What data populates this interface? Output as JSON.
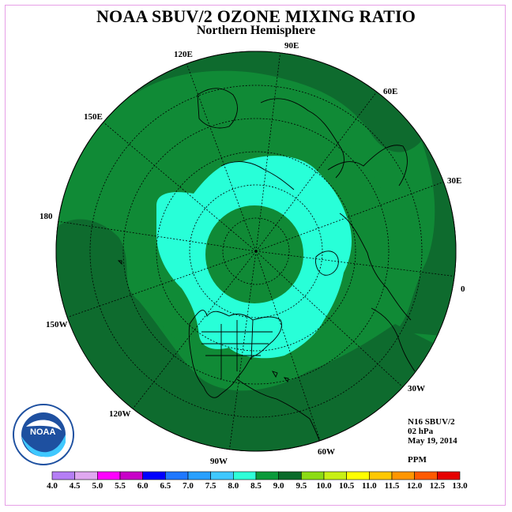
{
  "title": "NOAA SBUV/2 OZONE MIXING RATIO",
  "subtitle": "Northern Hemisphere",
  "longitude_labels": [
    "120E",
    "90E",
    "60E",
    "30E",
    "0",
    "30W",
    "60W",
    "90W",
    "120W",
    "150W",
    "180",
    "150E"
  ],
  "info": {
    "satellite": "N16 SBUV/2",
    "pressure": "02 hPa",
    "date": "May 19, 2014",
    "units": "PPM"
  },
  "logo": {
    "text": "NOAA",
    "ring_text": "NATIONAL OCEANIC AND ATMOSPHERIC ADMINISTRATION · U.S. DEPARTMENT OF COMMERCE"
  },
  "colorbar": {
    "labels": [
      "4.0",
      "4.5",
      "5.0",
      "5.5",
      "6.0",
      "6.5",
      "7.0",
      "7.5",
      "8.0",
      "8.5",
      "9.0",
      "9.5",
      "10.0",
      "10.5",
      "11.0",
      "11.5",
      "12.0",
      "12.5",
      "13.0"
    ],
    "colors": [
      "#b57ef5",
      "#e0a8f0",
      "#ff00ff",
      "#c800c8",
      "#0000ff",
      "#1f78ff",
      "#28a0ff",
      "#3fc8ff",
      "#2effd8",
      "#0a9a3a",
      "#096b2a",
      "#8cdc14",
      "#c8f014",
      "#ffff00",
      "#ffc800",
      "#ff9600",
      "#ff5a00",
      "#e60000",
      "#8c5a3c"
    ]
  },
  "map_colors": {
    "band_9_0": "#0e6b2e",
    "band_8_5": "#108a36",
    "band_8_0": "#28ffd8"
  }
}
